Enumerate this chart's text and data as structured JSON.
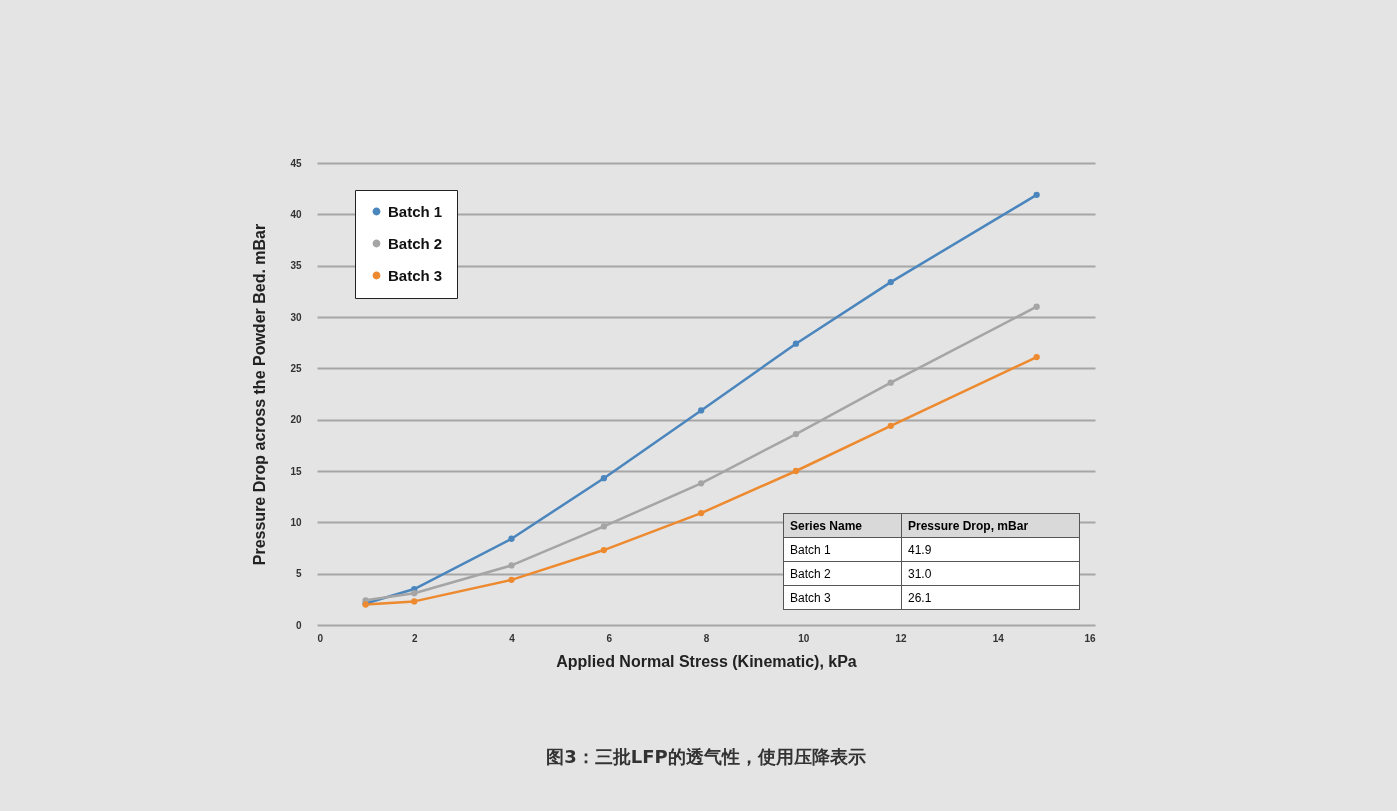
{
  "chart_data": {
    "type": "line",
    "title": "图3：三批LFP的透气性，使用压降表示",
    "xlabel": "Applied Normal Stress (Kinematic), kPa",
    "ylabel": "Pressure Drop across the Powder Bed. mBar",
    "x": [
      1.0,
      2.0,
      4.0,
      5.9,
      7.9,
      9.85,
      11.8,
      14.8
    ],
    "series": [
      {
        "name": "Batch 1",
        "color": "#4a86bd",
        "values": [
          2.1,
          3.5,
          8.4,
          14.3,
          20.9,
          27.4,
          33.4,
          41.9
        ]
      },
      {
        "name": "Batch 2",
        "color": "#a5a5a5",
        "values": [
          2.4,
          3.1,
          5.8,
          9.6,
          13.8,
          18.6,
          23.6,
          31.0
        ]
      },
      {
        "name": "Batch 3",
        "color": "#ed8a2f",
        "values": [
          2.0,
          2.3,
          4.4,
          7.3,
          10.9,
          15.0,
          19.4,
          26.1
        ]
      }
    ],
    "annotations": [
      "Series Name",
      "Pressure Drop, mBar",
      "Batch 1",
      "41.9",
      "Batch 2",
      "31.0",
      "Batch 3",
      "26.1"
    ],
    "xlim": [
      0,
      16
    ],
    "xticks": [
      0,
      2,
      4,
      6,
      8,
      10,
      12,
      14,
      16
    ],
    "ylim": [
      0,
      45
    ],
    "yticks": [
      0,
      5,
      10,
      15,
      20,
      25,
      30,
      35,
      40,
      45
    ],
    "grid": "y",
    "legend": "top left",
    "marker": "circle",
    "line_style": "solid"
  }
}
